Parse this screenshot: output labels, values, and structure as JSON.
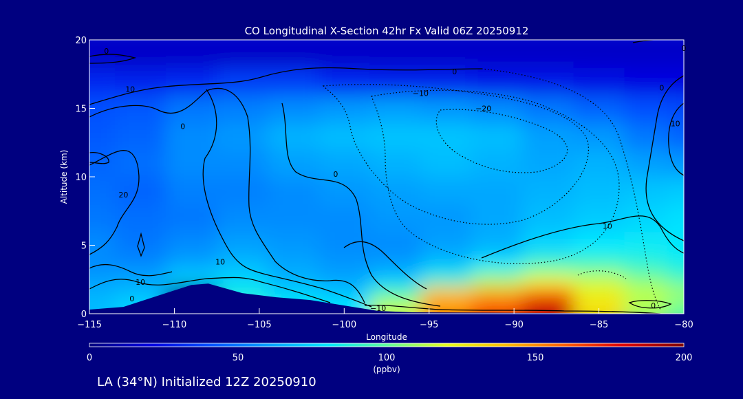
{
  "chart_data": {
    "type": "heatmap",
    "title": "CO Longitudinal X-Section 42hr  Fx Valid 06Z 20250912",
    "xlabel": "Longitude",
    "ylabel": "Altitude (km)",
    "xlim": [
      -115,
      -80
    ],
    "ylim": [
      0,
      20
    ],
    "x_ticks": [
      -115,
      -110,
      -105,
      -100,
      -95,
      -90,
      -85,
      -80
    ],
    "x_tick_labels": [
      "−115",
      "−110",
      "−105",
      "−100",
      "−95",
      "−90",
      "−85",
      "−80"
    ],
    "y_ticks": [
      0,
      5,
      10,
      15,
      20
    ],
    "y_tick_labels": [
      "0",
      "5",
      "10",
      "15",
      "20"
    ],
    "colorbar": {
      "min": 0,
      "max": 200,
      "ticks": [
        0,
        50,
        100,
        150,
        200
      ],
      "tick_labels": [
        "0",
        "50",
        "100",
        "150",
        "200"
      ],
      "units": "(ppbv)",
      "colors": [
        "#000080",
        "#0000e0",
        "#0050ff",
        "#00a0ff",
        "#00e8ff",
        "#60ffa0",
        "#e8ff20",
        "#ffc000",
        "#ff6000",
        "#e00000",
        "#800000"
      ]
    },
    "values_ppbv": {
      "altitudes_km": [
        0.5,
        1.5,
        2.5,
        3.5,
        5,
        7,
        9,
        11,
        13,
        15,
        17,
        19
      ],
      "longitudes": [
        -115,
        -112,
        -109,
        -106,
        -103,
        -100,
        -97,
        -94,
        -91,
        -88,
        -85,
        -82,
        -80
      ],
      "rows": [
        [
          68,
          75,
          0,
          90,
          82,
          80,
          115,
          150,
          165,
          185,
          130,
          110,
          100
        ],
        [
          65,
          68,
          0,
          85,
          75,
          70,
          95,
          140,
          145,
          160,
          125,
          115,
          110
        ],
        [
          60,
          62,
          75,
          75,
          65,
          62,
          72,
          90,
          110,
          120,
          115,
          105,
          95
        ],
        [
          55,
          55,
          62,
          68,
          62,
          58,
          60,
          70,
          82,
          95,
          95,
          90,
          85
        ],
        [
          55,
          50,
          55,
          60,
          58,
          55,
          55,
          60,
          65,
          75,
          80,
          82,
          80
        ],
        [
          50,
          48,
          50,
          55,
          55,
          55,
          58,
          58,
          62,
          68,
          72,
          75,
          78
        ],
        [
          48,
          45,
          52,
          52,
          55,
          58,
          60,
          62,
          62,
          65,
          68,
          70,
          72
        ],
        [
          45,
          48,
          55,
          55,
          60,
          62,
          65,
          68,
          65,
          62,
          65,
          60,
          58
        ],
        [
          42,
          45,
          55,
          58,
          65,
          68,
          70,
          70,
          68,
          60,
          58,
          50,
          45
        ],
        [
          40,
          42,
          50,
          52,
          55,
          58,
          60,
          58,
          55,
          50,
          45,
          40,
          38
        ],
        [
          30,
          28,
          30,
          35,
          35,
          30,
          28,
          28,
          25,
          25,
          22,
          20,
          20
        ],
        [
          15,
          15,
          15,
          15,
          15,
          15,
          15,
          15,
          15,
          15,
          15,
          15,
          15
        ]
      ]
    },
    "terrain_altitude_km": [
      [
        -115,
        0.3
      ],
      [
        -113,
        0.5
      ],
      [
        -111,
        1.3
      ],
      [
        -109,
        2.1
      ],
      [
        -108,
        2.2
      ],
      [
        -106,
        1.5
      ],
      [
        -104,
        1.2
      ],
      [
        -102,
        1.0
      ],
      [
        -100,
        0.6
      ],
      [
        -98,
        0.2
      ],
      [
        -96,
        0.1
      ],
      [
        -80,
        0.0
      ]
    ],
    "contour_labels": [
      {
        "text": "0",
        "lon": -114.0,
        "alt": 19.0
      },
      {
        "text": "10",
        "lon": -112.6,
        "alt": 16.2
      },
      {
        "text": "0",
        "lon": -109.5,
        "alt": 13.5
      },
      {
        "text": "20",
        "lon": -113.0,
        "alt": 8.5
      },
      {
        "text": "10",
        "lon": -107.3,
        "alt": 3.6
      },
      {
        "text": "10",
        "lon": -112.0,
        "alt": 2.1
      },
      {
        "text": "0",
        "lon": -112.5,
        "alt": 0.9
      },
      {
        "text": "0",
        "lon": -100.5,
        "alt": 10.0
      },
      {
        "text": "0",
        "lon": -93.5,
        "alt": 17.5
      },
      {
        "text": "−10",
        "lon": -95.5,
        "alt": 15.9
      },
      {
        "text": "−20",
        "lon": -91.8,
        "alt": 14.8
      },
      {
        "text": "10",
        "lon": -84.5,
        "alt": 6.2
      },
      {
        "text": "−10",
        "lon": -98.0,
        "alt": 0.2
      },
      {
        "text": "0",
        "lon": -81.8,
        "alt": 0.4
      },
      {
        "text": "0",
        "lon": -81.3,
        "alt": 16.3
      },
      {
        "text": "10",
        "lon": -80.5,
        "alt": 13.7
      },
      {
        "text": "0",
        "lon": -80.0,
        "alt": 19.2
      }
    ]
  },
  "footer": {
    "caption": "LA (34°N) Initialized 12Z 20250910"
  }
}
